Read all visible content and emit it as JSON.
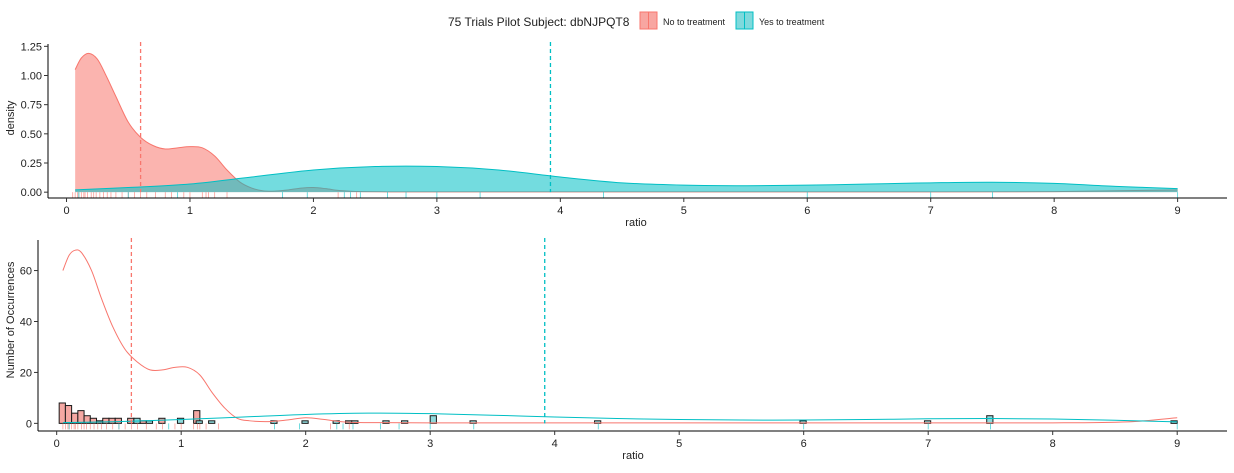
{
  "legend": {
    "title": "75 Trials Pilot Subject:  dbNJPQT8",
    "placement": "top",
    "entries": [
      {
        "label": "No to treatment",
        "color": "#F8766D",
        "fill": "#F8A6A1"
      },
      {
        "label": "Yes to treatment",
        "color": "#00BFC4",
        "fill": "#7FD9DC"
      }
    ]
  },
  "chart_data": [
    {
      "type": "area",
      "xlabel": "ratio",
      "ylabel": "density",
      "xlim": [
        -0.15,
        9.4
      ],
      "ylim": [
        -0.05,
        1.27
      ],
      "xticks": [
        0,
        1,
        2,
        3,
        4,
        5,
        6,
        7,
        8,
        9
      ],
      "yticks": [
        0.0,
        0.25,
        0.5,
        0.75,
        1.0,
        1.25
      ],
      "ytick_labels": [
        "0.00",
        "0.25",
        "0.50",
        "0.75",
        "1.00",
        "1.25"
      ],
      "grid": false,
      "series": [
        {
          "name": "No to treatment",
          "color": "#F8766D",
          "mean_line": 0.6,
          "x": [
            0.07,
            0.12,
            0.18,
            0.25,
            0.32,
            0.4,
            0.5,
            0.6,
            0.7,
            0.8,
            0.9,
            1.0,
            1.1,
            1.2,
            1.3,
            1.4,
            1.5,
            1.6,
            1.7,
            1.8,
            1.9,
            2.0,
            2.1,
            2.2,
            2.3,
            2.4,
            2.6,
            3.0,
            4.0,
            5.0,
            6.0,
            7.0,
            8.0,
            9.0
          ],
          "y": [
            1.05,
            1.15,
            1.19,
            1.14,
            1.0,
            0.82,
            0.6,
            0.47,
            0.4,
            0.37,
            0.38,
            0.39,
            0.38,
            0.31,
            0.19,
            0.09,
            0.035,
            0.01,
            0.01,
            0.02,
            0.035,
            0.04,
            0.03,
            0.015,
            0.008,
            0.005,
            0.003,
            0.002,
            0.002,
            0.002,
            0.002,
            0.002,
            0.005,
            0.02
          ]
        },
        {
          "name": "Yes to treatment",
          "color": "#00BFC4",
          "mean_line": 3.92,
          "x": [
            0.07,
            0.5,
            1.0,
            1.5,
            2.0,
            2.5,
            3.0,
            3.5,
            4.0,
            4.5,
            5.0,
            5.5,
            6.0,
            6.5,
            7.0,
            7.5,
            8.0,
            8.5,
            9.0
          ],
          "y": [
            0.02,
            0.04,
            0.07,
            0.13,
            0.19,
            0.22,
            0.22,
            0.19,
            0.13,
            0.08,
            0.06,
            0.055,
            0.06,
            0.07,
            0.08,
            0.085,
            0.075,
            0.05,
            0.03
          ]
        }
      ],
      "rug": {
        "No to treatment": [
          0.05,
          0.07,
          0.09,
          0.1,
          0.12,
          0.14,
          0.15,
          0.17,
          0.2,
          0.22,
          0.24,
          0.27,
          0.3,
          0.33,
          0.36,
          0.4,
          0.45,
          0.5,
          0.55,
          0.6,
          0.65,
          0.72,
          0.8,
          0.85,
          0.95,
          1.0,
          1.1,
          1.13,
          1.15,
          1.2,
          1.3,
          2.2,
          2.35
        ],
        "Yes to treatment": [
          0.1,
          0.5,
          0.9,
          1.75,
          1.95,
          2.25,
          2.3,
          2.38,
          2.6,
          2.75,
          3.0,
          3.35,
          4.35,
          6.0,
          7.0,
          7.5,
          9.0
        ]
      }
    },
    {
      "type": "bar",
      "xlabel": "ratio",
      "ylabel": "Number of Occurrences",
      "xlim": [
        -0.15,
        9.4
      ],
      "ylim": [
        -3,
        72
      ],
      "xticks": [
        0,
        1,
        2,
        3,
        4,
        5,
        6,
        7,
        8,
        9
      ],
      "yticks": [
        0,
        20,
        40,
        60
      ],
      "ytick_labels": [
        "0",
        "20",
        "40",
        "60"
      ],
      "grid": false,
      "bin_width": 0.05,
      "series": [
        {
          "name": "No to treatment",
          "color": "#F8766D",
          "fill": "#F5A8A3",
          "mean_line": 0.6,
          "bins_left": [
            0.02,
            0.07,
            0.12,
            0.17,
            0.22,
            0.27,
            0.32,
            0.37,
            0.42,
            0.47,
            0.57,
            0.67,
            0.82,
            1.1
          ],
          "counts": [
            8,
            7,
            4,
            5,
            3,
            2,
            1,
            2,
            2,
            2,
            2,
            1,
            2,
            5
          ]
        },
        {
          "name": "Yes to treatment",
          "color": "#00BFC4",
          "fill": "#8FD9DB",
          "mean_line": 3.92,
          "bins_left": [
            0.62,
            0.72,
            0.97,
            1.12,
            1.22,
            1.72,
            1.97,
            2.22,
            2.32,
            2.37,
            2.62,
            2.77,
            3.0,
            3.32,
            4.32,
            5.97,
            6.97,
            7.47,
            8.95
          ],
          "counts": [
            2,
            1,
            2,
            1,
            1,
            1,
            1,
            1,
            1,
            1,
            1,
            1,
            3,
            1,
            1,
            1,
            1,
            3,
            1
          ]
        }
      ],
      "curves": [
        {
          "name": "No to treatment",
          "color": "#F8766D",
          "x": [
            0.05,
            0.1,
            0.15,
            0.2,
            0.28,
            0.36,
            0.45,
            0.55,
            0.65,
            0.75,
            0.85,
            0.95,
            1.05,
            1.15,
            1.25,
            1.35,
            1.45,
            1.55,
            1.7,
            1.85,
            2.0,
            2.15,
            2.3,
            2.5,
            3.0,
            4.0,
            5.0,
            6.0,
            7.0,
            8.0,
            8.6,
            9.0
          ],
          "y": [
            60,
            66,
            68,
            67,
            60,
            49,
            38,
            29,
            24,
            21,
            21,
            22,
            22,
            19,
            12,
            6,
            2,
            1,
            0.7,
            1.3,
            2.2,
            1.5,
            0.6,
            0.3,
            0.2,
            0.2,
            0.2,
            0.2,
            0.2,
            0.2,
            0.6,
            2.2
          ]
        },
        {
          "name": "Yes to treatment",
          "color": "#00BFC4",
          "x": [
            0.05,
            0.5,
            1.0,
            1.5,
            2.0,
            2.5,
            3.0,
            3.5,
            4.0,
            4.5,
            5.0,
            5.5,
            6.0,
            6.5,
            7.0,
            7.5,
            8.0,
            8.5,
            9.0
          ],
          "y": [
            0.3,
            0.7,
            1.5,
            2.5,
            3.5,
            4.0,
            3.8,
            3.2,
            2.5,
            1.9,
            1.5,
            1.3,
            1.3,
            1.5,
            1.8,
            1.9,
            1.7,
            1.2,
            0.6
          ]
        }
      ],
      "rug": {
        "No to treatment": [
          0.05,
          0.07,
          0.09,
          0.1,
          0.12,
          0.14,
          0.15,
          0.17,
          0.2,
          0.22,
          0.24,
          0.27,
          0.3,
          0.33,
          0.36,
          0.4,
          0.45,
          0.5,
          0.55,
          0.6,
          0.65,
          0.72,
          0.8,
          0.85,
          0.95,
          1.0,
          1.1,
          1.13,
          1.15,
          1.2,
          1.3,
          2.2,
          2.35
        ],
        "Yes to treatment": [
          0.1,
          0.5,
          0.9,
          1.75,
          1.95,
          2.25,
          2.3,
          2.38,
          2.6,
          2.75,
          3.0,
          3.35,
          4.35,
          6.0,
          7.0,
          7.5,
          9.0
        ]
      }
    }
  ]
}
